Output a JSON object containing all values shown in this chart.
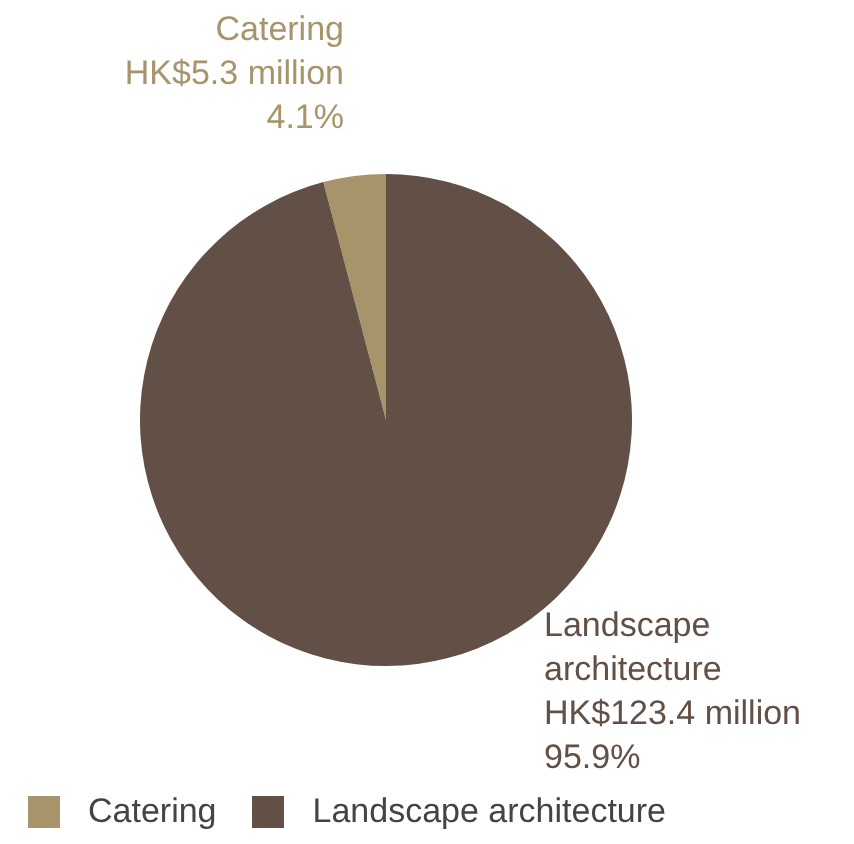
{
  "chart_data": {
    "type": "pie",
    "categories": [
      "Catering",
      "Landscape architecture"
    ],
    "values": [
      4.1,
      95.9
    ],
    "colors": [
      "#a8946a",
      "#624f45"
    ],
    "value_labels": [
      "HK$5.3 million\n4.1%",
      "HK$123.4 million\n95.9%"
    ],
    "legend": "bottom left"
  }
}
